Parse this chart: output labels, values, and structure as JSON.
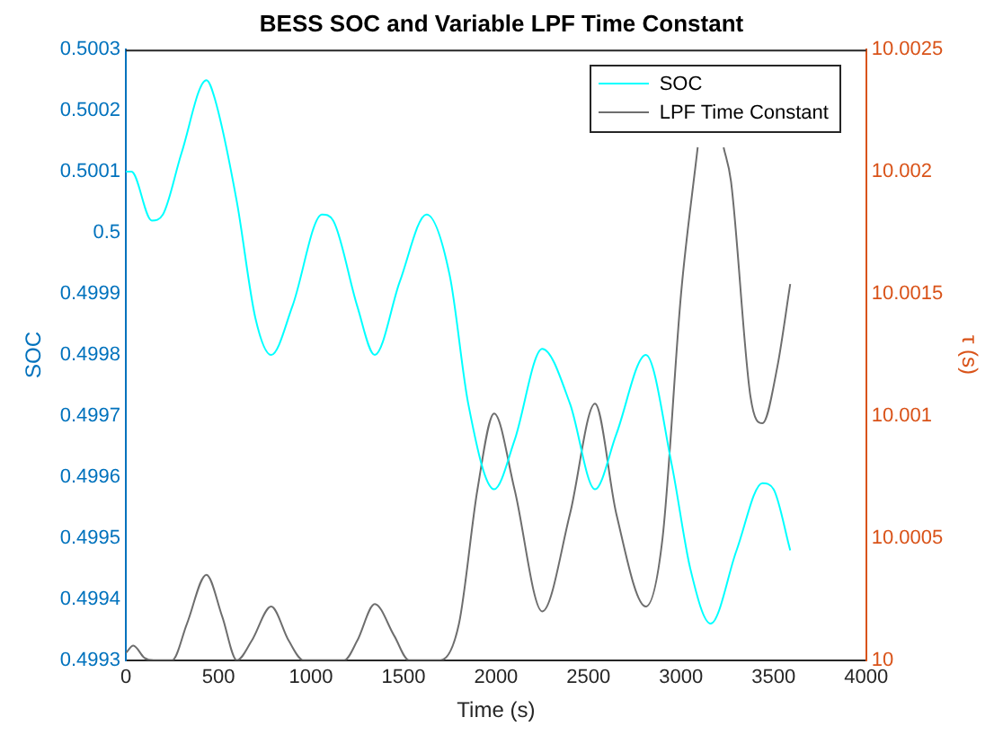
{
  "chart_data": {
    "type": "line",
    "title": "BESS SOC and Variable LPF Time Constant",
    "xlabel": "Time (s)",
    "ylabel": "SOC",
    "y2label": "τ (s)",
    "xlim": [
      0,
      4000
    ],
    "xticks": [
      0,
      500,
      1000,
      1500,
      2000,
      2500,
      3000,
      3500,
      4000
    ],
    "ylim": [
      0.4993,
      0.5003
    ],
    "yticks": [
      0.4993,
      0.4994,
      0.4995,
      0.4996,
      0.4997,
      0.4998,
      0.4999,
      0.5,
      0.5001,
      0.5002,
      0.5003
    ],
    "y2lim": [
      10,
      10.0025
    ],
    "y2ticks": [
      10,
      10.0005,
      10.001,
      10.0015,
      10.002,
      10.0025
    ],
    "grid": false,
    "legend": "top right",
    "marker": "none",
    "line_style": "solid",
    "series": [
      {
        "name": "SOC",
        "color": "#00ffff",
        "x": [
          0,
          30,
          140,
          200,
          300,
          435,
          480,
          600,
          700,
          785,
          900,
          1060,
          1120,
          1250,
          1345,
          1480,
          1625,
          1750,
          1850,
          1990,
          2100,
          2250,
          2400,
          2535,
          2650,
          2810,
          2950,
          3050,
          3160,
          3300,
          3440,
          3500,
          3590
        ],
        "values": [
          0.5001,
          0.5001,
          0.50002,
          0.50003,
          0.50013,
          0.50025,
          0.50022,
          0.50005,
          0.49986,
          0.4998,
          0.49988,
          0.50003,
          0.50002,
          0.49988,
          0.4998,
          0.49992,
          0.50003,
          0.49993,
          0.49972,
          0.49958,
          0.49966,
          0.49981,
          0.49972,
          0.49958,
          0.49967,
          0.4998,
          0.49962,
          0.49945,
          0.49936,
          0.49948,
          0.49959,
          0.49958,
          0.49948
        ]
      },
      {
        "name": "LPF Time Constant",
        "color": "#6e6e6e",
        "axis": "y2",
        "x": [
          0,
          40,
          100,
          150,
          250,
          330,
          435,
          520,
          600,
          680,
          785,
          880,
          960,
          1180,
          1250,
          1345,
          1450,
          1530,
          1700,
          1800,
          1900,
          1990,
          2100,
          2250,
          2400,
          2535,
          2650,
          2810,
          2900,
          3000,
          3090,
          3160,
          3230,
          3270,
          3375,
          3440,
          3520,
          3590
        ],
        "values": [
          10.00003,
          10.00006,
          10.00001,
          10,
          10,
          10.00015,
          10.00035,
          10.00018,
          10,
          10.00008,
          10.00022,
          10.00008,
          10,
          10,
          10.00008,
          10.00023,
          10.0001,
          10,
          10,
          10.00015,
          10.0007,
          10.00101,
          10.0007,
          10.0002,
          10.0006,
          10.00105,
          10.0006,
          10.00022,
          10.0005,
          10.0015,
          10.0021,
          null,
          10.0021,
          10.00196,
          10.00108,
          10.00097,
          10.0012,
          10.00154
        ]
      }
    ]
  }
}
